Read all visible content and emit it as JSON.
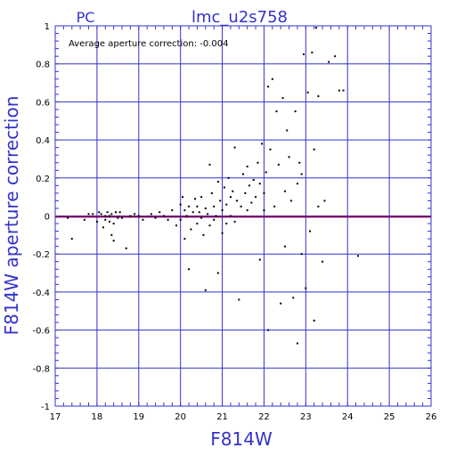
{
  "chart_data": {
    "type": "scatter",
    "title": "lmc_u2s758",
    "subtitle": "PC",
    "annotation": "Average aperture correction: -0.004",
    "xlabel": "F814W",
    "ylabel": "F814W aperture correction",
    "xlim": [
      17,
      26
    ],
    "ylim": [
      -1,
      1
    ],
    "x_ticks": [
      17,
      18,
      19,
      20,
      21,
      22,
      23,
      24,
      25,
      26
    ],
    "y_ticks": [
      -1,
      -0.8,
      -0.6,
      -0.4,
      -0.2,
      0,
      0.2,
      0.4,
      0.6,
      0.8,
      1
    ],
    "x_tick_labels": [
      "17",
      "18",
      "19",
      "20",
      "21",
      "22",
      "23",
      "24",
      "25",
      "26"
    ],
    "y_tick_labels": [
      "-1",
      "-0.8",
      "-0.6",
      "-0.4",
      "-0.2",
      "0",
      "0.2",
      "0.4",
      "0.6",
      "0.8",
      "1"
    ],
    "grid": true,
    "reference_line": {
      "y": -0.004,
      "color": "#800060"
    },
    "colors": {
      "axes": "#3333cc",
      "grid": "#3333cc",
      "points": "#000000",
      "text": "#3333cc"
    },
    "points": [
      [
        17.3,
        -0.01
      ],
      [
        17.4,
        -0.12
      ],
      [
        17.7,
        -0.02
      ],
      [
        17.8,
        0.01
      ],
      [
        17.9,
        0.01
      ],
      [
        18.0,
        -0.03
      ],
      [
        18.05,
        0.02
      ],
      [
        18.1,
        0.01
      ],
      [
        18.15,
        -0.06
      ],
      [
        18.2,
        0.0
      ],
      [
        18.2,
        -0.02
      ],
      [
        18.25,
        0.02
      ],
      [
        18.3,
        -0.03
      ],
      [
        18.3,
        0.0
      ],
      [
        18.35,
        -0.1
      ],
      [
        18.35,
        0.01
      ],
      [
        18.4,
        -0.04
      ],
      [
        18.4,
        -0.13
      ],
      [
        18.45,
        0.02
      ],
      [
        18.5,
        -0.01
      ],
      [
        18.55,
        0.02
      ],
      [
        18.6,
        -0.01
      ],
      [
        18.7,
        -0.17
      ],
      [
        18.8,
        0.0
      ],
      [
        18.9,
        0.01
      ],
      [
        19.0,
        0.0
      ],
      [
        19.1,
        -0.02
      ],
      [
        19.3,
        0.01
      ],
      [
        19.4,
        -0.01
      ],
      [
        19.5,
        0.02
      ],
      [
        19.6,
        0.0
      ],
      [
        19.7,
        -0.02
      ],
      [
        19.8,
        0.03
      ],
      [
        19.9,
        -0.05
      ],
      [
        20.0,
        0.06
      ],
      [
        20.0,
        -0.02
      ],
      [
        20.05,
        0.1
      ],
      [
        20.1,
        0.03
      ],
      [
        20.1,
        -0.12
      ],
      [
        20.15,
        0.0
      ],
      [
        20.2,
        0.05
      ],
      [
        20.2,
        -0.28
      ],
      [
        20.25,
        -0.07
      ],
      [
        20.3,
        0.02
      ],
      [
        20.35,
        0.09
      ],
      [
        20.4,
        -0.04
      ],
      [
        20.4,
        0.05
      ],
      [
        20.45,
        0.02
      ],
      [
        20.5,
        -0.01
      ],
      [
        20.5,
        0.1
      ],
      [
        20.55,
        -0.1
      ],
      [
        20.6,
        0.04
      ],
      [
        20.6,
        -0.39
      ],
      [
        20.65,
        0.01
      ],
      [
        20.7,
        0.27
      ],
      [
        20.7,
        -0.05
      ],
      [
        20.75,
        0.12
      ],
      [
        20.8,
        0.05
      ],
      [
        20.8,
        -0.02
      ],
      [
        20.85,
        0.0
      ],
      [
        20.9,
        0.18
      ],
      [
        20.9,
        -0.3
      ],
      [
        20.95,
        0.08
      ],
      [
        21.0,
        0.03
      ],
      [
        21.0,
        -0.09
      ],
      [
        21.05,
        0.15
      ],
      [
        21.1,
        0.06
      ],
      [
        21.1,
        -0.04
      ],
      [
        21.15,
        0.2
      ],
      [
        21.2,
        0.1
      ],
      [
        21.2,
        0.0
      ],
      [
        21.25,
        0.13
      ],
      [
        21.3,
        0.36
      ],
      [
        21.3,
        -0.03
      ],
      [
        21.35,
        0.08
      ],
      [
        21.4,
        -0.44
      ],
      [
        21.45,
        0.05
      ],
      [
        21.5,
        0.22
      ],
      [
        21.55,
        0.12
      ],
      [
        21.6,
        0.26
      ],
      [
        21.6,
        0.03
      ],
      [
        21.65,
        0.16
      ],
      [
        21.7,
        0.07
      ],
      [
        21.75,
        0.19
      ],
      [
        21.8,
        0.1
      ],
      [
        21.85,
        0.28
      ],
      [
        21.9,
        -0.23
      ],
      [
        21.9,
        0.17
      ],
      [
        21.95,
        0.38
      ],
      [
        22.0,
        0.12
      ],
      [
        22.0,
        0.03
      ],
      [
        22.05,
        0.23
      ],
      [
        22.1,
        0.68
      ],
      [
        22.1,
        -0.6
      ],
      [
        22.15,
        0.35
      ],
      [
        22.2,
        0.72
      ],
      [
        22.25,
        0.05
      ],
      [
        22.3,
        0.55
      ],
      [
        22.35,
        0.27
      ],
      [
        22.4,
        -0.46
      ],
      [
        22.45,
        0.62
      ],
      [
        22.5,
        0.13
      ],
      [
        22.5,
        -0.16
      ],
      [
        22.55,
        0.45
      ],
      [
        22.6,
        0.31
      ],
      [
        22.65,
        0.08
      ],
      [
        22.7,
        -0.43
      ],
      [
        22.75,
        0.55
      ],
      [
        22.8,
        0.17
      ],
      [
        22.8,
        -0.67
      ],
      [
        22.85,
        0.28
      ],
      [
        22.9,
        0.22
      ],
      [
        22.9,
        -0.2
      ],
      [
        22.95,
        0.85
      ],
      [
        23.0,
        -0.38
      ],
      [
        23.05,
        0.65
      ],
      [
        23.1,
        -0.08
      ],
      [
        23.15,
        0.86
      ],
      [
        23.2,
        0.35
      ],
      [
        23.2,
        -0.55
      ],
      [
        23.25,
        0.99
      ],
      [
        23.3,
        0.05
      ],
      [
        23.3,
        0.63
      ],
      [
        23.4,
        -0.24
      ],
      [
        23.45,
        0.08
      ],
      [
        23.55,
        0.81
      ],
      [
        23.7,
        0.84
      ],
      [
        23.8,
        0.66
      ],
      [
        23.9,
        0.66
      ],
      [
        24.25,
        -0.21
      ]
    ]
  }
}
